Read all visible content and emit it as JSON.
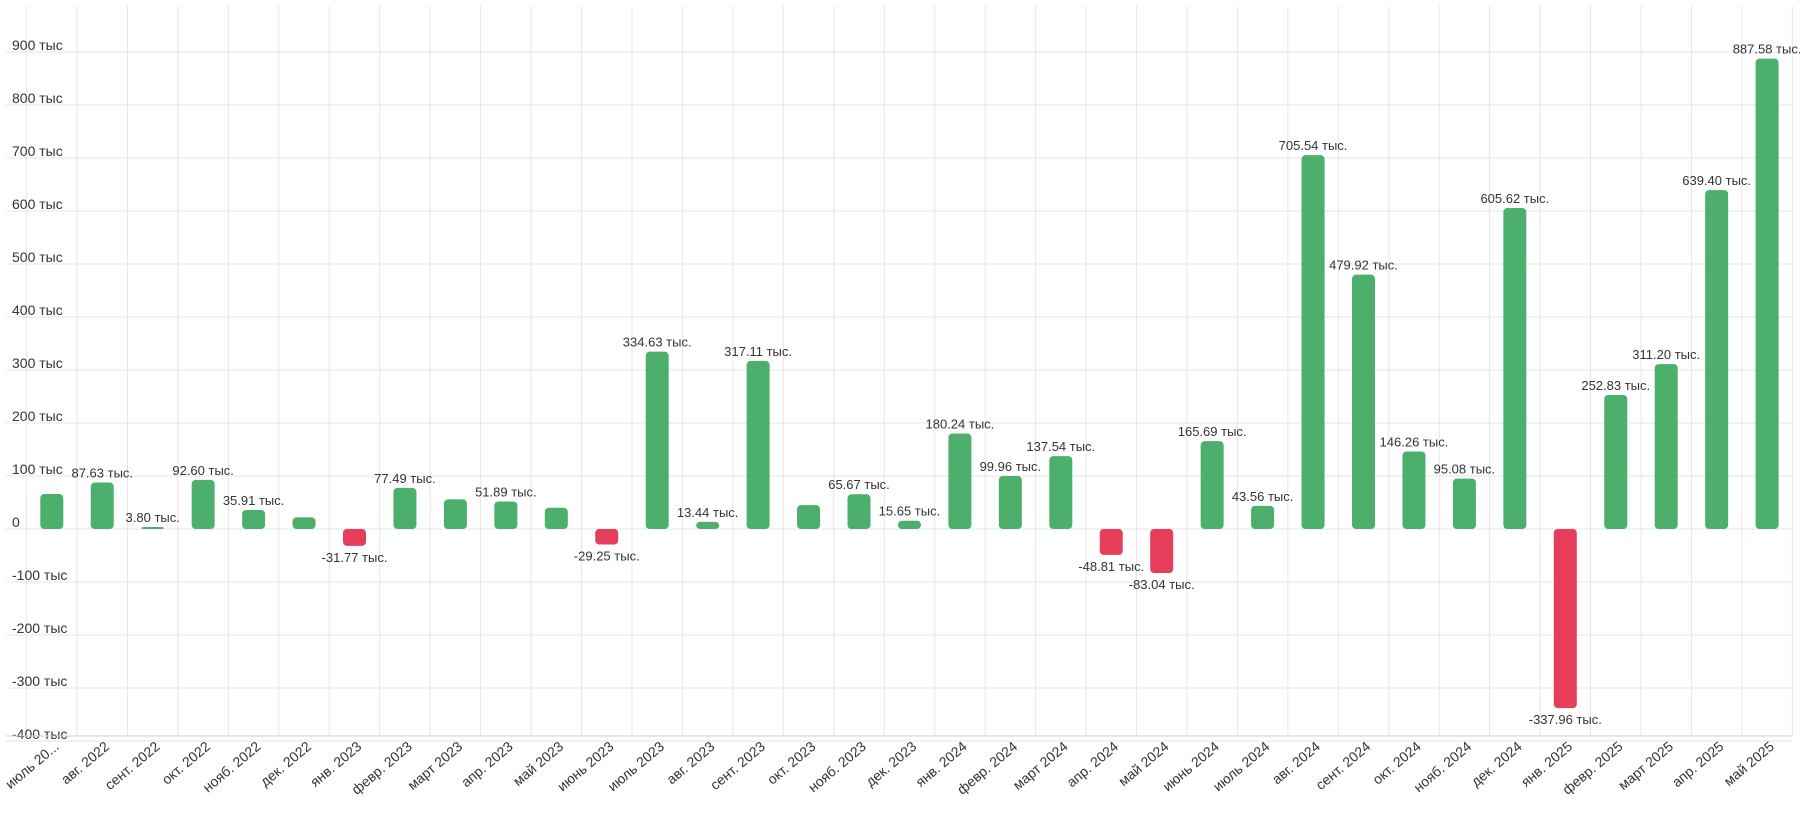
{
  "chart_data": {
    "type": "bar",
    "categories": [
      "июль 20...",
      "авг. 2022",
      "сент. 2022",
      "окт. 2022",
      "нояб. 2022",
      "дек. 2022",
      "янв. 2023",
      "февр. 2023",
      "март 2023",
      "апр. 2023",
      "май 2023",
      "июнь 2023",
      "июль 2023",
      "авг. 2023",
      "сент. 2023",
      "окт. 2023",
      "нояб. 2023",
      "дек. 2023",
      "янв. 2024",
      "февр. 2024",
      "март 2024",
      "апр. 2024",
      "май 2024",
      "июнь 2024",
      "июль 2024",
      "авг. 2024",
      "сент. 2024",
      "окт. 2024",
      "нояб. 2024",
      "дек. 2024",
      "янв. 2025",
      "февр. 2025",
      "март 2025",
      "апр. 2025",
      "май 2025"
    ],
    "values": [
      66,
      87.63,
      3.8,
      92.6,
      35.91,
      22,
      -31.77,
      77.49,
      56,
      51.89,
      40,
      -29.25,
      334.63,
      13.44,
      317.11,
      45,
      65.67,
      15.65,
      180.24,
      99.96,
      137.54,
      -48.81,
      -83.04,
      165.69,
      43.56,
      705.54,
      479.92,
      146.26,
      95.08,
      605.62,
      -337.96,
      252.83,
      311.2,
      639.4,
      887.58
    ],
    "data_labels": [
      "",
      "87.63 тыс.",
      "3.80 тыс.",
      "92.60 тыс.",
      "35.91 тыс.",
      "",
      "-31.77 тыс.",
      "77.49 тыс.",
      "",
      "51.89 тыс.",
      "",
      "-29.25 тыс.",
      "334.63 тыс.",
      "13.44 тыс.",
      "317.11 тыс.",
      "",
      "65.67 тыс.",
      "15.65 тыс.",
      "180.24 тыс.",
      "99.96 тыс.",
      "137.54 тыс.",
      "-48.81 тыс.",
      "-83.04 тыс.",
      "165.69 тыс.",
      "43.56 тыс.",
      "705.54 тыс.",
      "479.92 тыс.",
      "146.26 тыс.",
      "95.08 тыс.",
      "605.62 тыс.",
      "-337.96 тыс.",
      "252.83 тыс.",
      "311.20 тыс.",
      "639.40 тыс.",
      "887.58 тыс."
    ],
    "y_ticks": [
      900,
      800,
      700,
      600,
      500,
      400,
      300,
      200,
      100,
      0,
      -100,
      -200,
      -300,
      -400
    ],
    "y_tick_labels": [
      "900 тыс",
      "800 тыс",
      "700 тыс",
      "600 тыс",
      "500 тыс",
      "400 тыс",
      "300 тыс",
      "200 тыс",
      "100 тыс",
      "0",
      "-100 тыс",
      "-200 тыс",
      "-300 тыс",
      "-400 тыс"
    ],
    "ylim": [
      -400,
      900
    ],
    "unit": "тыс",
    "grid": true,
    "title": "",
    "xlabel": "",
    "ylabel": "",
    "colors": {
      "positive": "#4caf6c",
      "negative": "#e63e5a",
      "grid": "#e6e6e6",
      "text": "#333333"
    }
  }
}
